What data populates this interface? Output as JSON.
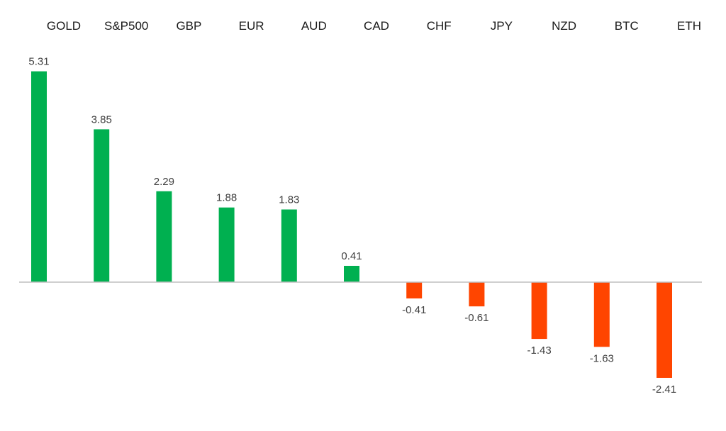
{
  "chart_data": {
    "type": "bar",
    "title": "",
    "xlabel": "",
    "ylabel": "",
    "categories": [
      "GOLD",
      "S&P500",
      "GBP",
      "EUR",
      "AUD",
      "CAD",
      "CHF",
      "JPY",
      "NZD",
      "BTC",
      "ETH"
    ],
    "values": [
      5.31,
      3.85,
      2.29,
      1.88,
      1.83,
      0.41,
      -0.41,
      -0.61,
      -1.43,
      -1.63,
      -2.41
    ],
    "value_labels": [
      "5.31",
      "3.85",
      "2.29",
      "1.88",
      "1.83",
      "0.41",
      "-0.41",
      "-0.61",
      "-1.43",
      "-1.63",
      "-2.41"
    ],
    "ylim": [
      -2.9,
      5.9
    ],
    "grid": false,
    "legend": "none",
    "category_label_placement": "top",
    "colors": {
      "positive": "#00b050",
      "negative": "#ff4500",
      "axis": "#bfbfbf",
      "category_text": "#1a1a1a",
      "value_text": "#404040",
      "background": "#ffffff"
    }
  }
}
